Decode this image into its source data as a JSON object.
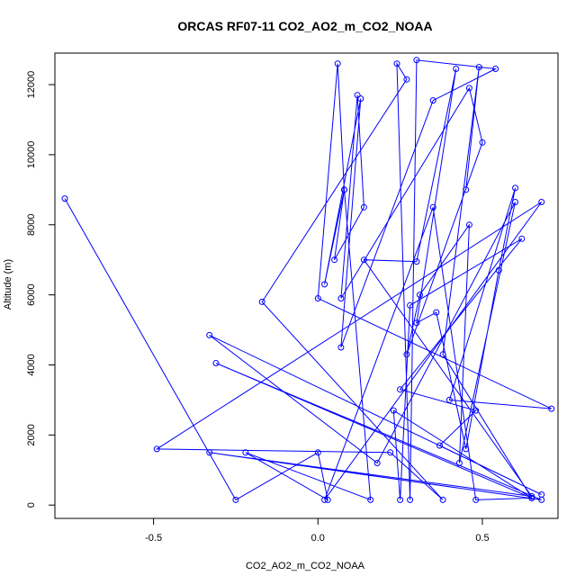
{
  "chart_data": {
    "type": "line",
    "title": "ORCAS RF07-11 CO2_AO2_m_CO2_NOAA",
    "xlabel": "CO2_AO2_m_CO2_NOAA",
    "ylabel": "Altitude (m)",
    "xlim": [
      -0.8,
      0.73
    ],
    "ylim": [
      -380,
      12900
    ],
    "xticks": [
      -0.5,
      0.0,
      0.5
    ],
    "xtick_labels": [
      "-0.5",
      "0.0",
      "0.5"
    ],
    "yticks": [
      0,
      2000,
      4000,
      6000,
      8000,
      10000,
      12000
    ],
    "ytick_labels": [
      "0",
      "2000",
      "4000",
      "6000",
      "8000",
      "10000",
      "12000"
    ],
    "grid": false,
    "legend": "none",
    "series": [
      {
        "color": "#0000ff",
        "points": [
          [
            -0.77,
            8750
          ],
          [
            -0.25,
            150
          ],
          [
            0.0,
            1500
          ],
          [
            0.03,
            150
          ],
          [
            -0.22,
            1500
          ],
          [
            0.16,
            150
          ],
          [
            0.08,
            9000
          ],
          [
            0.02,
            6300
          ],
          [
            0.13,
            11600
          ],
          [
            0.07,
            4500
          ],
          [
            0.35,
            11550
          ],
          [
            0.54,
            12450
          ],
          [
            0.3,
            12700
          ],
          [
            0.28,
            150
          ],
          [
            0.24,
            12600
          ],
          [
            0.27,
            12150
          ],
          [
            -0.17,
            5800
          ],
          [
            0.38,
            150
          ],
          [
            0.22,
            1500
          ],
          [
            -0.49,
            1600
          ],
          [
            0.68,
            8650
          ],
          [
            0.02,
            150
          ],
          [
            0.35,
            8500
          ],
          [
            0.48,
            150
          ],
          [
            0.65,
            200
          ],
          [
            -0.31,
            4050
          ],
          [
            0.68,
            150
          ],
          [
            -0.33,
            1500
          ],
          [
            0.65,
            250
          ],
          [
            0.14,
            7000
          ],
          [
            0.3,
            6950
          ],
          [
            0.42,
            12450
          ],
          [
            0.3,
            5200
          ],
          [
            0.36,
            5500
          ],
          [
            0.45,
            1600
          ],
          [
            0.55,
            6700
          ],
          [
            0.6,
            9050
          ],
          [
            0.4,
            3000
          ],
          [
            0.71,
            2750
          ],
          [
            0.0,
            5900
          ],
          [
            0.06,
            12600
          ],
          [
            0.08,
            9000
          ],
          [
            0.05,
            7000
          ],
          [
            0.14,
            8500
          ],
          [
            0.12,
            11700
          ],
          [
            0.07,
            5900
          ],
          [
            0.46,
            11900
          ],
          [
            0.5,
            10350
          ],
          [
            0.27,
            4300
          ],
          [
            0.31,
            6000
          ],
          [
            0.46,
            8000
          ],
          [
            0.43,
            1200
          ],
          [
            0.6,
            8650
          ],
          [
            0.18,
            1200
          ],
          [
            -0.33,
            4850
          ],
          [
            0.68,
            300
          ],
          [
            0.37,
            1700
          ],
          [
            0.48,
            2700
          ],
          [
            0.25,
            3300
          ],
          [
            0.62,
            7600
          ],
          [
            0.28,
            5700
          ],
          [
            0.25,
            150
          ],
          [
            0.23,
            2700
          ],
          [
            0.65,
            200
          ],
          [
            0.38,
            4300
          ],
          [
            0.49,
            12500
          ],
          [
            0.45,
            9000
          ]
        ]
      }
    ]
  }
}
